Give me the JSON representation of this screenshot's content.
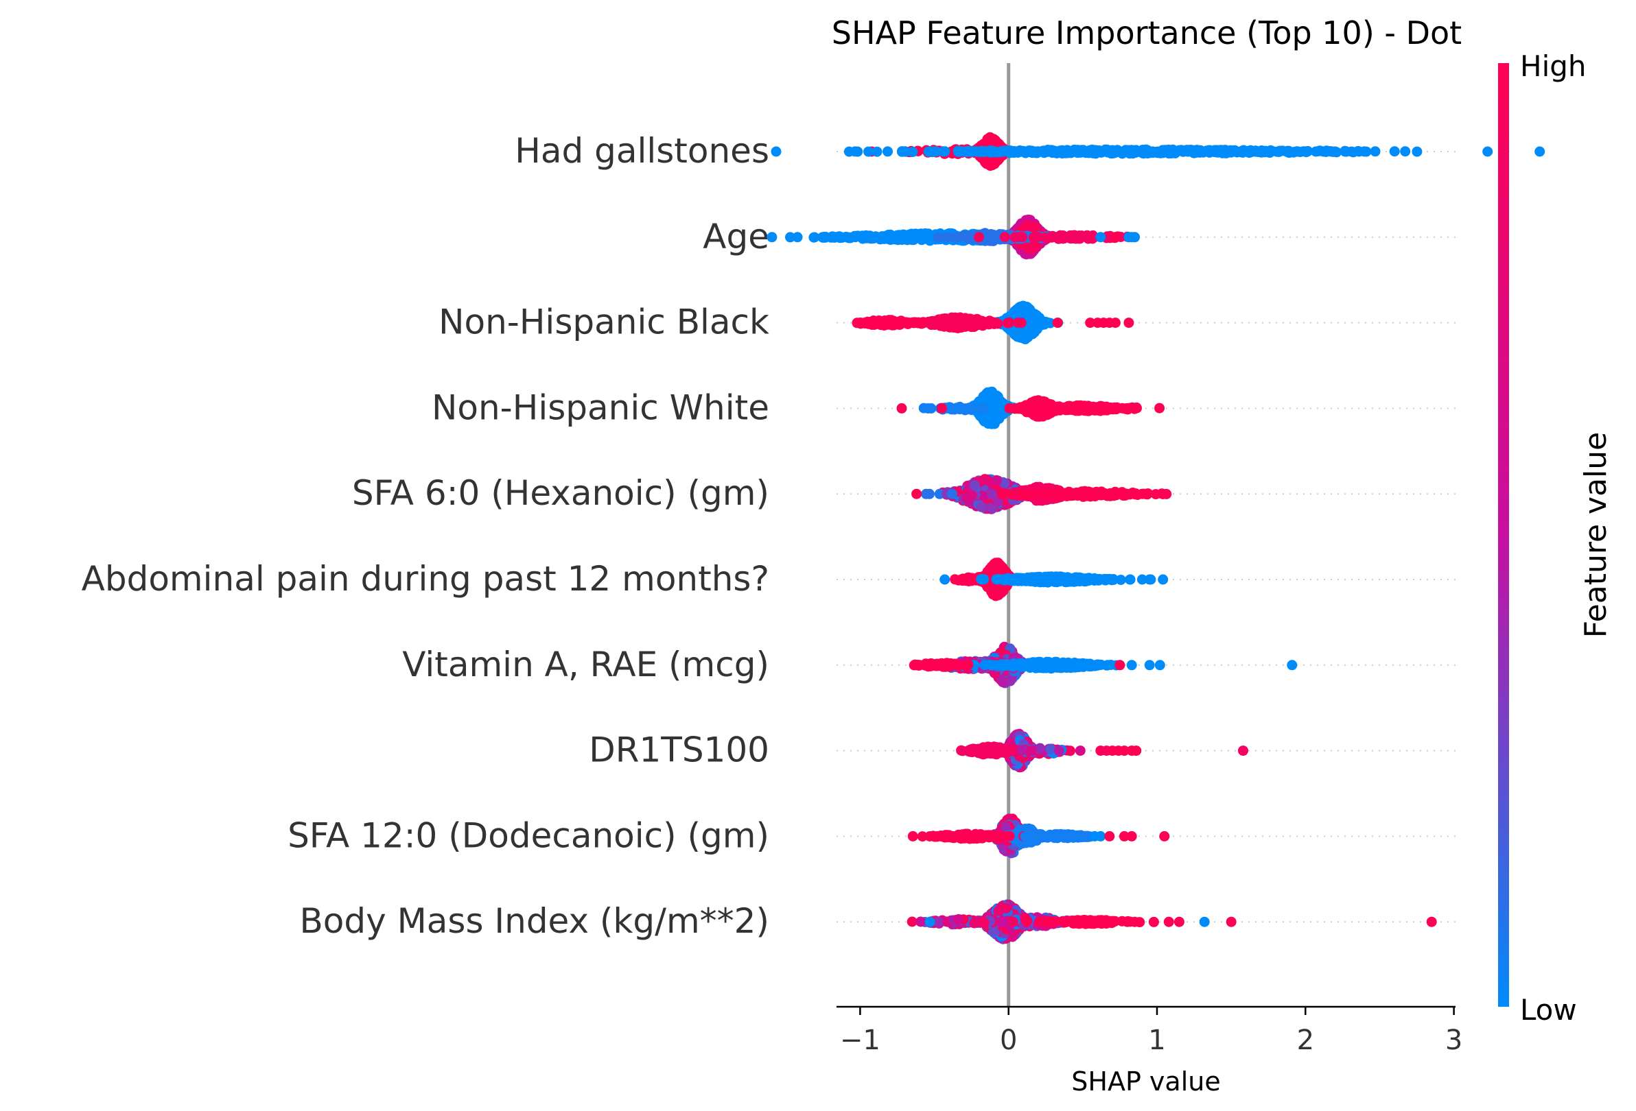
{
  "chart_data": {
    "type": "scatter",
    "title": "SHAP Feature Importance (Top 10) - Dot",
    "xlabel": "SHAP value",
    "ylabel": "",
    "xlim": [
      -1.15,
      3.05
    ],
    "xticks": [
      -1,
      0,
      1,
      2,
      3
    ],
    "xtick_labels": [
      "−1",
      "0",
      "1",
      "2",
      "3"
    ],
    "grid": false,
    "zero_line": 0,
    "colorbar": {
      "label": "Feature value",
      "high_label": "High",
      "low_label": "Low",
      "low_color": "#008bfb",
      "mid_color": "#c70fa0",
      "high_color": "#ff0052"
    },
    "features": [
      {
        "name": "Had gallstones",
        "clusters": [
          {
            "x": -0.12,
            "spread": 0.05,
            "width": 0.34,
            "n": 380,
            "value": 1.0
          },
          {
            "x": -0.35,
            "spread": 0.18,
            "width": 0.06,
            "n": 45,
            "value": 1.0
          },
          {
            "x": 0.75,
            "spread": 0.75,
            "width": 0.05,
            "n": 320,
            "value": 0.0
          },
          {
            "x": 1.3,
            "spread": 0.72,
            "width": 0.04,
            "n": 90,
            "value": 0.0
          }
        ],
        "points": [
          [
            0.18,
            0.0
          ],
          [
            2.0,
            0.0
          ],
          [
            2.07,
            0.0
          ],
          [
            2.12,
            0.0
          ],
          [
            2.2,
            0.0
          ],
          [
            2.36,
            0.0
          ]
        ]
      },
      {
        "name": "Age",
        "clusters": [
          {
            "x": 0.13,
            "spread": 0.06,
            "width": 0.42,
            "n": 300,
            "value": 0.55
          },
          {
            "x": 0.14,
            "spread": 0.06,
            "width": 0.3,
            "n": 110,
            "value": 0.95
          },
          {
            "x": -0.45,
            "spread": 0.4,
            "width": 0.09,
            "n": 270,
            "value": 0.0
          },
          {
            "x": -0.12,
            "spread": 0.12,
            "width": 0.1,
            "n": 80,
            "value": 0.1
          },
          {
            "x": 0.45,
            "spread": 0.2,
            "width": 0.05,
            "n": 60,
            "value": 0.9
          }
        ],
        "points": [
          [
            -0.95,
            0.0
          ],
          [
            0.62,
            0.0
          ],
          [
            0.72,
            1.0
          ],
          [
            0.81,
            0.0
          ],
          [
            0.83,
            0.0
          ],
          [
            0.85,
            0.0
          ],
          [
            -0.2,
            0.95
          ]
        ]
      },
      {
        "name": "Non-Hispanic Black",
        "clusters": [
          {
            "x": 0.1,
            "spread": 0.07,
            "width": 0.4,
            "n": 380,
            "value": 0.0
          },
          {
            "x": -0.33,
            "spread": 0.14,
            "width": 0.13,
            "n": 200,
            "value": 0.95
          },
          {
            "x": -0.82,
            "spread": 0.12,
            "width": 0.07,
            "n": 60,
            "value": 1.0
          }
        ],
        "points": [
          [
            0.33,
            1.0
          ],
          [
            0.55,
            1.0
          ],
          [
            0.6,
            1.0
          ],
          [
            0.64,
            1.0
          ],
          [
            0.68,
            1.0
          ],
          [
            0.72,
            1.0
          ],
          [
            0.81,
            1.0
          ],
          [
            -0.97,
            1.0
          ]
        ]
      },
      {
        "name": "Non-Hispanic White",
        "clusters": [
          {
            "x": -0.12,
            "spread": 0.06,
            "width": 0.4,
            "n": 380,
            "value": 0.0
          },
          {
            "x": 0.21,
            "spread": 0.07,
            "width": 0.2,
            "n": 150,
            "value": 1.0
          },
          {
            "x": 0.5,
            "spread": 0.22,
            "width": 0.07,
            "n": 120,
            "value": 1.0
          },
          {
            "x": -0.35,
            "spread": 0.1,
            "width": 0.05,
            "n": 30,
            "value": 0.05
          }
        ],
        "points": [
          [
            -0.72,
            1.0
          ],
          [
            -0.45,
            1.0
          ],
          [
            0.8,
            1.0
          ],
          [
            0.81,
            1.0
          ]
        ]
      },
      {
        "name": "SFA 6:0 (Hexanoic) (gm)",
        "clusters": [
          {
            "x": -0.13,
            "spread": 0.14,
            "width": 0.36,
            "n": 420,
            "value": "mixed"
          },
          {
            "x": 0.22,
            "spread": 0.1,
            "width": 0.17,
            "n": 130,
            "value": 0.9
          },
          {
            "x": 0.55,
            "spread": 0.22,
            "width": 0.07,
            "n": 120,
            "value": 1.0
          }
        ],
        "points": [
          [
            -0.62,
            1.0
          ],
          [
            -0.38,
            0.1
          ],
          [
            0.85,
            1.0
          ],
          [
            0.9,
            1.0
          ],
          [
            0.92,
            1.0
          ]
        ]
      },
      {
        "name": "Abdominal pain during past 12 months?",
        "clusters": [
          {
            "x": -0.08,
            "spread": 0.05,
            "width": 0.4,
            "n": 380,
            "value": 1.0
          },
          {
            "x": -0.22,
            "spread": 0.08,
            "width": 0.06,
            "n": 40,
            "value": 1.0
          },
          {
            "x": 0.3,
            "spread": 0.22,
            "width": 0.07,
            "n": 240,
            "value": 0.0
          }
        ],
        "points": [
          [
            -0.43,
            0.0
          ],
          [
            0.82,
            0.0
          ],
          [
            0.9,
            0.0
          ],
          [
            0.95,
            0.0
          ],
          [
            1.04,
            0.0
          ]
        ]
      },
      {
        "name": "Vitamin A, RAE (mcg)",
        "clusters": [
          {
            "x": -0.02,
            "spread": 0.06,
            "width": 0.44,
            "n": 230,
            "value": "mixed"
          },
          {
            "x": -0.22,
            "spread": 0.17,
            "width": 0.1,
            "n": 160,
            "value": "mixed"
          },
          {
            "x": 0.28,
            "spread": 0.2,
            "width": 0.08,
            "n": 200,
            "value": 0.0
          },
          {
            "x": -0.45,
            "spread": 0.12,
            "width": 0.05,
            "n": 40,
            "value": 1.0
          }
        ],
        "points": [
          [
            -0.6,
            1.0
          ],
          [
            -0.55,
            1.0
          ],
          [
            0.75,
            1.0
          ],
          [
            0.83,
            0.0
          ],
          [
            0.95,
            0.0
          ],
          [
            1.02,
            0.0
          ],
          [
            1.91,
            0.0
          ]
        ]
      },
      {
        "name": "DR1TS100",
        "clusters": [
          {
            "x": 0.07,
            "spread": 0.05,
            "width": 0.4,
            "n": 300,
            "value": "mixed"
          },
          {
            "x": -0.12,
            "spread": 0.09,
            "width": 0.1,
            "n": 110,
            "value": 0.9
          },
          {
            "x": 0.25,
            "spread": 0.08,
            "width": 0.08,
            "n": 50,
            "value": "mixed"
          }
        ],
        "points": [
          [
            0.34,
            0.45
          ],
          [
            0.62,
            0.95
          ],
          [
            0.66,
            0.95
          ],
          [
            0.7,
            1.0
          ],
          [
            0.74,
            1.0
          ],
          [
            0.78,
            1.0
          ],
          [
            0.83,
            1.0
          ],
          [
            0.86,
            1.0
          ],
          [
            1.58,
            0.9
          ]
        ]
      },
      {
        "name": "SFA 12:0 (Dodecanoic) (gm)",
        "clusters": [
          {
            "x": 0.01,
            "spread": 0.05,
            "width": 0.44,
            "n": 230,
            "value": "mixed"
          },
          {
            "x": 0.12,
            "spread": 0.06,
            "width": 0.2,
            "n": 120,
            "value": 0.05
          },
          {
            "x": -0.27,
            "spread": 0.13,
            "width": 0.06,
            "n": 110,
            "value": 1.0
          },
          {
            "x": 0.35,
            "spread": 0.12,
            "width": 0.05,
            "n": 60,
            "value": 0.05
          }
        ],
        "points": [
          [
            -0.48,
            1.0
          ],
          [
            0.58,
            0.0
          ],
          [
            0.62,
            0.0
          ],
          [
            0.68,
            1.0
          ],
          [
            0.78,
            1.0
          ],
          [
            0.83,
            1.0
          ],
          [
            1.05,
            1.0
          ]
        ]
      },
      {
        "name": "Body Mass Index (kg/m**2)",
        "clusters": [
          {
            "x": -0.02,
            "spread": 0.08,
            "width": 0.42,
            "n": 330,
            "value": "mixed"
          },
          {
            "x": 0.2,
            "spread": 0.12,
            "width": 0.12,
            "n": 100,
            "value": "mixed"
          },
          {
            "x": -0.35,
            "spread": 0.12,
            "width": 0.06,
            "n": 60,
            "value": "mixed"
          },
          {
            "x": 0.55,
            "spread": 0.18,
            "width": 0.05,
            "n": 80,
            "value": 1.0
          }
        ],
        "points": [
          [
            -0.53,
            0.0
          ],
          [
            0.85,
            1.0
          ],
          [
            0.8,
            1.0
          ],
          [
            1.08,
            1.0
          ],
          [
            1.15,
            1.0
          ],
          [
            1.32,
            0.0
          ],
          [
            1.5,
            1.0
          ],
          [
            2.85,
            1.0
          ],
          [
            0.03,
            0.9
          ]
        ]
      }
    ]
  }
}
